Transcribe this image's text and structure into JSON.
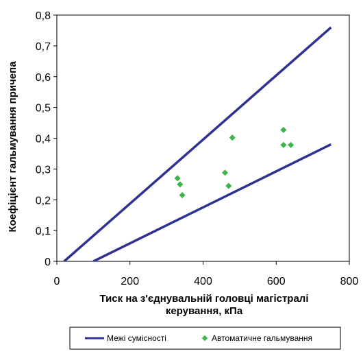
{
  "chart_data": {
    "type": "scatter",
    "xlabel_lines": [
      "Тиск на з'єднувальній головці магістралі",
      "керування, кПа"
    ],
    "ylabel": "Коефіцієнт  гальмування  причепа",
    "xlim": [
      0,
      800
    ],
    "ylim": [
      0,
      0.8
    ],
    "xticks": [
      {
        "value": 0,
        "label": "0"
      },
      {
        "value": 200,
        "label": "200"
      },
      {
        "value": 400,
        "label": "400"
      },
      {
        "value": 600,
        "label": "600"
      },
      {
        "value": 800,
        "label": "800"
      }
    ],
    "yticks": [
      {
        "value": 0,
        "label": "0"
      },
      {
        "value": 0.1,
        "label": "0,1"
      },
      {
        "value": 0.2,
        "label": "0,2"
      },
      {
        "value": 0.3,
        "label": "0,3"
      },
      {
        "value": 0.4,
        "label": "0,4"
      },
      {
        "value": 0.5,
        "label": "0,5"
      },
      {
        "value": 0.6,
        "label": "0,6"
      },
      {
        "value": 0.7,
        "label": "0,7"
      },
      {
        "value": 0.8,
        "label": "0,8"
      }
    ],
    "grid": false,
    "legend_position": "bottom",
    "series": [
      {
        "name": "Межі сумісності",
        "kind": "line",
        "color": "#2e3192",
        "lines": [
          {
            "points": [
              [
                20,
                0
              ],
              [
                750,
                0.76
              ]
            ]
          },
          {
            "points": [
              [
                100,
                0
              ],
              [
                750,
                0.38
              ]
            ]
          }
        ]
      },
      {
        "name": "Автоматичне гальмування",
        "kind": "scatter",
        "color": "#3db54a",
        "points": [
          [
            330,
            0.27
          ],
          [
            337,
            0.25
          ],
          [
            343,
            0.215
          ],
          [
            460,
            0.288
          ],
          [
            470,
            0.245
          ],
          [
            480,
            0.402
          ],
          [
            620,
            0.427
          ],
          [
            620,
            0.378
          ],
          [
            640,
            0.378
          ]
        ]
      }
    ]
  }
}
